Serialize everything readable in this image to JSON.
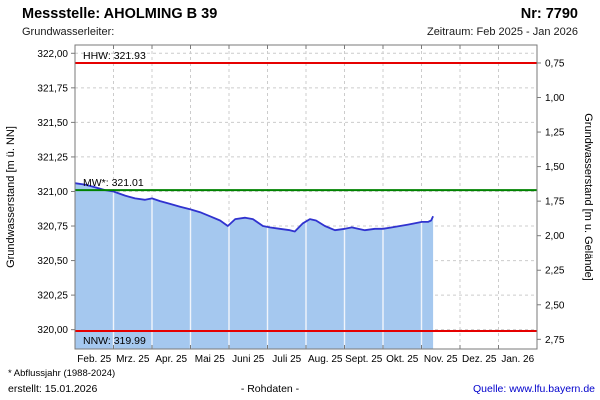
{
  "header": {
    "title": "Messstelle: AHOLMING B 39",
    "number": "Nr: 7790",
    "aquifer": "Grundwasserleiter:",
    "period": "Zeitraum: Feb 2025 - Jan 2026"
  },
  "footer": {
    "note": "* Abflussjahr (1988-2024)",
    "created": "erstellt:  15.01.2026",
    "center": "- Rohdaten -",
    "source": "Quelle: www.lfu.bayern.de"
  },
  "chart_data": {
    "type": "area",
    "title": "",
    "ylabel_left": "Grundwasserstand [m ü. NN]",
    "ylabel_right": "Grundwasserstand [m u. Gelände]",
    "ylim": [
      319.86,
      322.06
    ],
    "xlim": [
      0,
      12
    ],
    "grid": "dashed",
    "ground_level": 322.68,
    "months": [
      "Feb. 25",
      "Mrz. 25",
      "Apr. 25",
      "Mai 25",
      "Juni 25",
      "Juli 25",
      "Aug. 25",
      "Sept. 25",
      "Okt. 25",
      "Nov. 25",
      "Dez. 25",
      "Jan. 26"
    ],
    "left_ticks": [
      {
        "v": 322.0,
        "label": "322,00"
      },
      {
        "v": 321.75,
        "label": "321,75"
      },
      {
        "v": 321.5,
        "label": "321,50"
      },
      {
        "v": 321.25,
        "label": "321,25"
      },
      {
        "v": 321.0,
        "label": "321,00"
      },
      {
        "v": 320.75,
        "label": "320,75"
      },
      {
        "v": 320.5,
        "label": "320,50"
      },
      {
        "v": 320.25,
        "label": "320,25"
      },
      {
        "v": 320.0,
        "label": "320,00"
      }
    ],
    "right_ticks": [
      {
        "v": 0.75,
        "label": "0,75"
      },
      {
        "v": 1.0,
        "label": "1,00"
      },
      {
        "v": 1.25,
        "label": "1,25"
      },
      {
        "v": 1.5,
        "label": "1,50"
      },
      {
        "v": 1.75,
        "label": "1,75"
      },
      {
        "v": 2.0,
        "label": "2,00"
      },
      {
        "v": 2.25,
        "label": "2,25"
      },
      {
        "v": 2.5,
        "label": "2,50"
      },
      {
        "v": 2.75,
        "label": "2,75"
      }
    ],
    "reference_lines": [
      {
        "name": "HHW",
        "value": 321.93,
        "label": "HHW: 321.93",
        "color": "#e60000",
        "label_position": "above"
      },
      {
        "name": "MW",
        "value": 321.01,
        "label": "MW*: 321.01",
        "color": "#008200",
        "label_position": "above"
      },
      {
        "name": "NNW",
        "value": 319.99,
        "label": "NNW: 319.99",
        "color": "#e60000",
        "label_position": "below"
      }
    ],
    "series": [
      {
        "name": "Grundwasserstand Rohdaten",
        "points": [
          [
            0.0,
            321.06
          ],
          [
            0.26,
            321.05
          ],
          [
            0.52,
            321.03
          ],
          [
            0.78,
            321.01
          ],
          [
            1.0,
            321.0
          ],
          [
            1.3,
            320.97
          ],
          [
            1.56,
            320.95
          ],
          [
            1.82,
            320.94
          ],
          [
            2.0,
            320.95
          ],
          [
            2.21,
            320.93
          ],
          [
            2.47,
            320.91
          ],
          [
            2.73,
            320.89
          ],
          [
            3.0,
            320.87
          ],
          [
            3.25,
            320.85
          ],
          [
            3.51,
            320.82
          ],
          [
            3.77,
            320.79
          ],
          [
            3.97,
            320.75
          ],
          [
            4.16,
            320.8
          ],
          [
            4.42,
            320.81
          ],
          [
            4.62,
            320.8
          ],
          [
            4.88,
            320.75
          ],
          [
            5.06,
            320.74
          ],
          [
            5.32,
            320.73
          ],
          [
            5.58,
            320.72
          ],
          [
            5.71,
            320.71
          ],
          [
            5.92,
            320.77
          ],
          [
            6.1,
            320.8
          ],
          [
            6.26,
            320.79
          ],
          [
            6.49,
            320.75
          ],
          [
            6.75,
            320.72
          ],
          [
            7.01,
            320.73
          ],
          [
            7.19,
            320.74
          ],
          [
            7.35,
            320.73
          ],
          [
            7.53,
            320.72
          ],
          [
            7.79,
            320.73
          ],
          [
            8.0,
            320.73
          ],
          [
            8.23,
            320.74
          ],
          [
            8.44,
            320.75
          ],
          [
            8.65,
            320.76
          ],
          [
            8.83,
            320.77
          ],
          [
            9.01,
            320.78
          ],
          [
            9.17,
            320.78
          ],
          [
            9.25,
            320.79
          ],
          [
            9.3,
            320.82
          ]
        ]
      }
    ],
    "colors": {
      "fill": "#a5c8ef",
      "line": "#3032cf",
      "grid": "#cccccc",
      "border": "#7a7a7a",
      "inner_gridline": "#f0f4fb"
    }
  }
}
